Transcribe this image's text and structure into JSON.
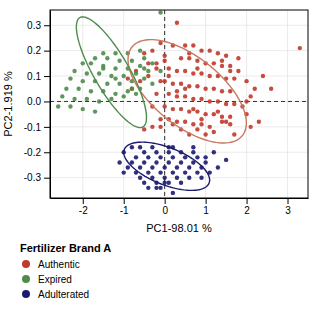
{
  "chart_data": {
    "type": "scatter",
    "xlabel": "PC1-98.01 %",
    "ylabel": "PC2-1.919 %",
    "xlim": [
      -2.8,
      3.5
    ],
    "ylim": [
      -0.38,
      0.36
    ],
    "xticks": [
      -2,
      -1,
      0,
      1,
      2,
      3
    ],
    "yticks": [
      -0.3,
      -0.2,
      -0.1,
      {
        "value": 0.0,
        "label": "0.0"
      },
      0.1,
      0.2,
      0.3
    ],
    "grid": true,
    "legend_title": "Fertilizer Brand A",
    "reference_lines": [
      {
        "axis": "y",
        "value": 0
      },
      {
        "axis": "x",
        "value": 0
      }
    ],
    "series": [
      {
        "name": "Authentic",
        "color": "#c0392b",
        "ellipse": {
          "center": [
            0.55,
            0.04
          ],
          "width": 2.9,
          "height": 0.32,
          "angle": -5,
          "color": "#c87860"
        },
        "x": [
          0.3,
          3.3,
          -0.1,
          0.2,
          0.5,
          0.7,
          0.9,
          1.1,
          1.3,
          1.5,
          -0.3,
          -0.5,
          0.0,
          0.4,
          0.6,
          0.8,
          1.0,
          1.2,
          1.4,
          1.6,
          -0.2,
          0.1,
          0.3,
          0.5,
          0.7,
          0.9,
          1.1,
          1.3,
          1.5,
          1.7,
          -0.1,
          0.0,
          0.2,
          0.4,
          0.6,
          0.8,
          1.0,
          1.2,
          1.4,
          1.6,
          -0.2,
          0.1,
          0.3,
          0.5,
          0.7,
          0.9,
          1.1,
          1.3,
          1.5,
          1.7,
          -0.3,
          0.0,
          0.2,
          0.4,
          0.6,
          0.8,
          1.0,
          1.2,
          1.4,
          1.6,
          -0.1,
          0.1,
          0.3,
          0.5,
          0.7,
          0.9,
          1.1,
          -0.5,
          2.0,
          2.2,
          2.0,
          1.8,
          -0.4,
          -0.6,
          1.9,
          2.1,
          -0.8,
          2.3,
          1.7,
          -0.3,
          0.6,
          0.8,
          1.0,
          1.2,
          0.4,
          0.2,
          -0.1,
          0.9,
          1.4,
          1.6,
          -0.2,
          0.0,
          0.6,
          1.4,
          -0.4,
          2.4,
          1.8,
          0.1,
          0.8,
          1.6,
          0.3,
          0.5,
          2.6,
          2.1,
          -0.7,
          -0.9,
          0.7,
          1.3,
          2.0,
          1.5
        ],
        "values": [
          0.31,
          0.21,
          0.23,
          0.22,
          0.22,
          0.22,
          0.2,
          0.2,
          0.19,
          0.18,
          0.2,
          0.19,
          0.18,
          0.17,
          0.17,
          0.16,
          0.15,
          0.15,
          0.14,
          0.14,
          0.13,
          0.13,
          0.12,
          0.12,
          0.11,
          0.11,
          0.1,
          0.1,
          0.09,
          0.09,
          0.08,
          0.08,
          0.07,
          0.07,
          0.06,
          0.06,
          0.05,
          0.05,
          0.04,
          0.04,
          0.03,
          0.03,
          0.02,
          0.02,
          0.01,
          0.01,
          0.0,
          0.0,
          -0.01,
          -0.01,
          -0.02,
          -0.02,
          -0.03,
          -0.03,
          -0.04,
          -0.04,
          -0.05,
          -0.05,
          -0.06,
          -0.06,
          -0.07,
          -0.07,
          -0.08,
          -0.08,
          -0.09,
          -0.09,
          -0.1,
          -0.11,
          0.08,
          0.05,
          -0.05,
          0.12,
          0.15,
          0.08,
          -0.02,
          0.02,
          0.05,
          -0.08,
          -0.13,
          -0.1,
          -0.13,
          -0.11,
          -0.13,
          -0.12,
          -0.11,
          -0.09,
          -0.1,
          -0.07,
          -0.08,
          -0.09,
          0.15,
          0.16,
          0.19,
          0.16,
          0.1,
          0.1,
          0.17,
          0.1,
          0.13,
          0.12,
          0.04,
          0.05,
          0.05,
          -0.1,
          0.12,
          0.09,
          -0.03,
          -0.04,
          0.0,
          -0.08
        ]
      },
      {
        "name": "Expired",
        "color": "#4d8c4a",
        "ellipse": {
          "center": [
            -1.3,
            0.115
          ],
          "width": 1.75,
          "height": 0.245,
          "angle": -12,
          "color": "#4d8c4a"
        },
        "x": [
          -0.1,
          -1.5,
          -1.2,
          -0.9,
          -0.6,
          -1.7,
          -1.4,
          -1.1,
          -0.8,
          -0.5,
          -2.0,
          -1.8,
          -1.5,
          -1.2,
          -0.9,
          -0.6,
          -0.3,
          -2.2,
          -1.9,
          -1.6,
          -1.3,
          -1.0,
          -0.7,
          -0.4,
          -0.1,
          -2.3,
          -2.0,
          -1.7,
          -1.4,
          -1.1,
          -0.8,
          -0.5,
          -2.4,
          -2.1,
          -1.8,
          -1.5,
          -1.2,
          -0.9,
          -0.6,
          -2.5,
          -2.2,
          -1.9,
          -1.6,
          -1.3,
          -1.0,
          -0.7,
          -2.6,
          -2.3,
          -2.0,
          -1.7,
          -0.5,
          -1.5,
          -0.8,
          -1.2,
          -0.3
        ],
        "values": [
          0.35,
          0.19,
          0.19,
          0.19,
          0.2,
          0.17,
          0.17,
          0.16,
          0.16,
          0.17,
          0.15,
          0.15,
          0.14,
          0.13,
          0.13,
          0.14,
          0.15,
          0.12,
          0.11,
          0.11,
          0.1,
          0.1,
          0.11,
          0.12,
          0.12,
          0.09,
          0.08,
          0.08,
          0.07,
          0.07,
          0.08,
          0.09,
          0.05,
          0.05,
          0.04,
          0.04,
          0.03,
          0.04,
          0.05,
          0.02,
          0.01,
          0.01,
          0.0,
          0.01,
          0.02,
          0.03,
          -0.02,
          -0.02,
          -0.03,
          -0.04,
          0.13,
          0.13,
          0.05,
          0.09,
          0.07
        ]
      },
      {
        "name": "Adulterated",
        "color": "#1a1a6e",
        "ellipse": {
          "center": [
            0.05,
            -0.255
          ],
          "width": 2.1,
          "height": 0.155,
          "angle": -3,
          "color": "#1a1a6e"
        },
        "x": [
          -0.5,
          -0.2,
          0.1,
          0.4,
          0.7,
          -0.7,
          -0.4,
          -0.1,
          0.2,
          0.5,
          0.8,
          -0.8,
          -0.5,
          -0.2,
          0.1,
          0.4,
          0.7,
          1.0,
          -0.9,
          -0.6,
          -0.3,
          0.0,
          0.3,
          0.6,
          0.9,
          -0.7,
          -0.4,
          -0.1,
          0.2,
          0.5,
          0.8,
          -0.6,
          -0.3,
          0.0,
          0.3,
          0.6,
          -0.5,
          -0.2,
          0.1,
          0.4,
          -0.1,
          -0.4,
          1.2,
          1.5,
          0.1,
          -0.8,
          -1.0,
          -1.1,
          -1.0,
          0.9,
          1.1,
          1.3,
          0.7,
          -0.6,
          -0.3,
          0.2,
          0.0,
          1.0,
          -0.2,
          0.2
        ],
        "values": [
          -0.2,
          -0.2,
          -0.2,
          -0.2,
          -0.2,
          -0.22,
          -0.22,
          -0.22,
          -0.22,
          -0.22,
          -0.22,
          -0.24,
          -0.24,
          -0.24,
          -0.24,
          -0.24,
          -0.24,
          -0.24,
          -0.26,
          -0.26,
          -0.26,
          -0.26,
          -0.26,
          -0.26,
          -0.26,
          -0.28,
          -0.28,
          -0.28,
          -0.28,
          -0.28,
          -0.28,
          -0.3,
          -0.3,
          -0.3,
          -0.3,
          -0.3,
          -0.32,
          -0.32,
          -0.32,
          -0.32,
          -0.34,
          -0.34,
          -0.2,
          -0.23,
          -0.18,
          -0.18,
          -0.2,
          -0.24,
          -0.28,
          -0.3,
          -0.28,
          -0.26,
          -0.18,
          -0.18,
          -0.18,
          -0.18,
          -0.32,
          -0.22,
          -0.34,
          -0.36
        ]
      }
    ]
  }
}
